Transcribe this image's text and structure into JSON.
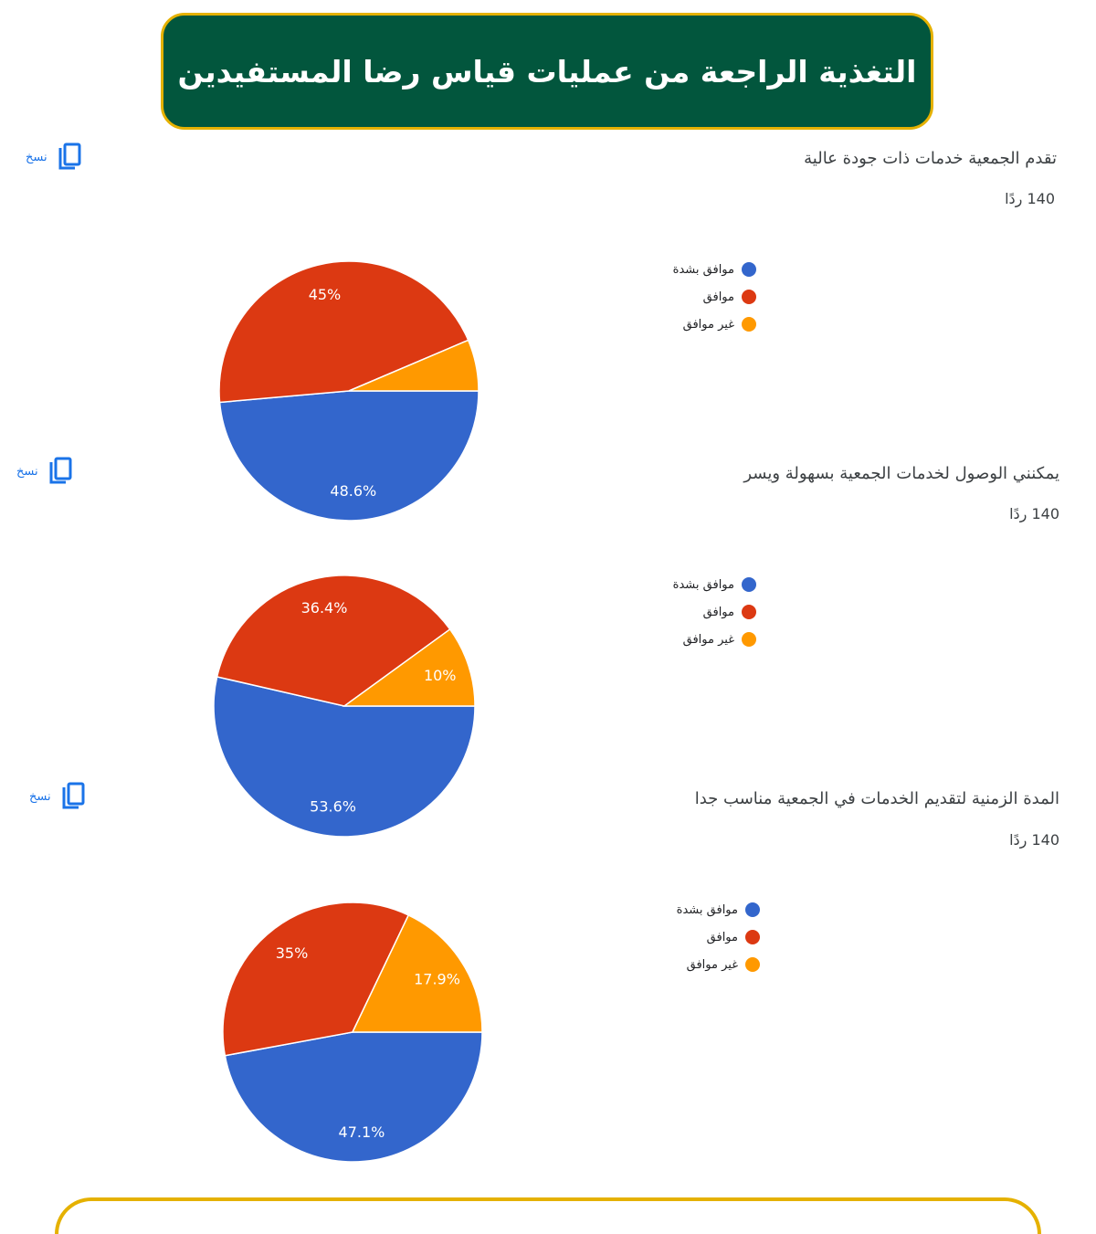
{
  "header": {
    "title": "التغذية الراجعة من عمليات قياس رضا المستفيدين"
  },
  "copy_label": "نسخ",
  "colors": {
    "strongly_agree": "#3366cc",
    "agree": "#dc3912",
    "disagree": "#ff9900",
    "banner_bg": "#02563d",
    "banner_border": "#e5b100"
  },
  "questions": [
    {
      "title": "تقدم الجمعية خدمات ذات جودة عالية",
      "count": "140 ردًا"
    },
    {
      "title": "يمكنني الوصول لخدمات الجمعية بسهولة ويسر",
      "count": "140 ردًا"
    },
    {
      "title": "المدة الزمنية لتقديم الخدمات في الجمعية مناسب جدا",
      "count": "140 ردًا"
    }
  ],
  "chart_data": [
    {
      "type": "pie",
      "title": "تقدم الجمعية خدمات ذات جودة عالية",
      "categories": [
        "موافق بشدة",
        "موافق",
        "غير موافق"
      ],
      "values": [
        48.6,
        45,
        6.4
      ],
      "labels": [
        "48.6%",
        "45%",
        ""
      ],
      "colors": [
        "#3366cc",
        "#dc3912",
        "#ff9900"
      ],
      "legend": "right"
    },
    {
      "type": "pie",
      "title": "يمكنني الوصول لخدمات الجمعية بسهولة ويسر",
      "categories": [
        "موافق بشدة",
        "موافق",
        "غير موافق"
      ],
      "values": [
        53.6,
        36.4,
        10
      ],
      "labels": [
        "53.6%",
        "36.4%",
        "10%"
      ],
      "colors": [
        "#3366cc",
        "#dc3912",
        "#ff9900"
      ],
      "legend": "right"
    },
    {
      "type": "pie",
      "title": "المدة الزمنية لتقديم الخدمات في الجمعية مناسب جدا",
      "categories": [
        "موافق بشدة",
        "موافق",
        "غير موافق"
      ],
      "values": [
        47.1,
        35,
        17.9
      ],
      "labels": [
        "47.1%",
        "35%",
        "17.9%"
      ],
      "colors": [
        "#3366cc",
        "#dc3912",
        "#ff9900"
      ],
      "legend": "right"
    }
  ]
}
